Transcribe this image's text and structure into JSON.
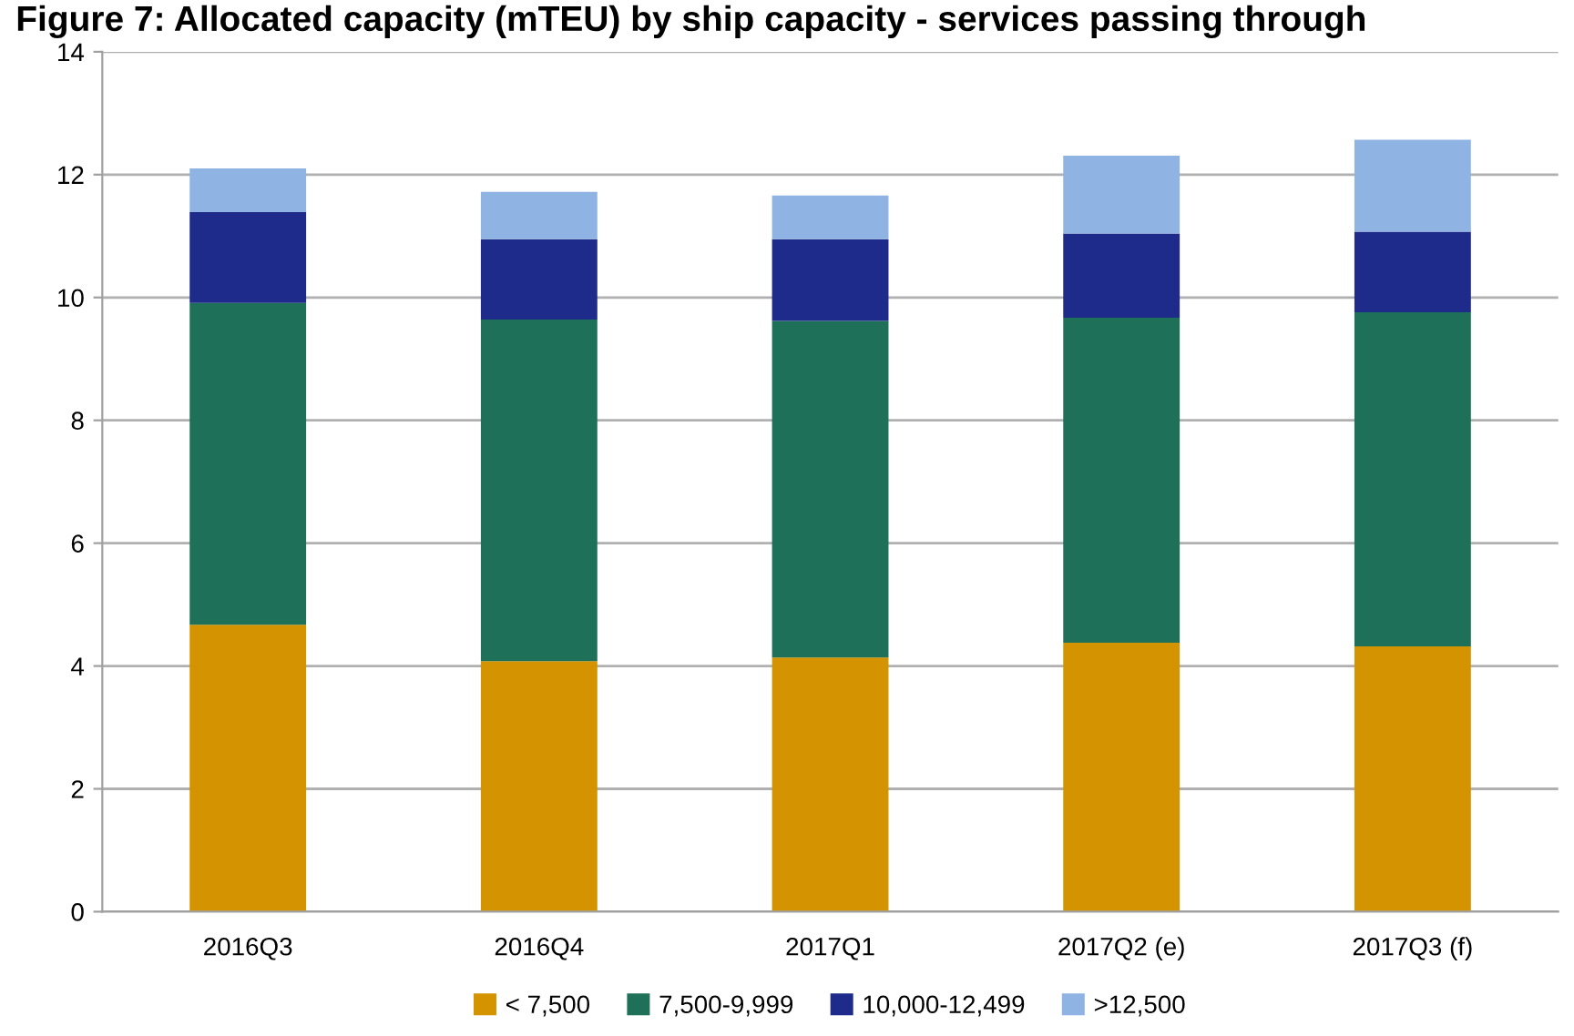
{
  "chart_data": {
    "type": "bar",
    "title": "Figure 7: Allocated capacity (mTEU) by ship capacity - services passing through",
    "categories": [
      "2016Q3",
      "2016Q4",
      "2017Q1",
      "2017Q2 (e)",
      "2017Q3 (f)"
    ],
    "stacked": true,
    "series": [
      {
        "name": "< 7,500",
        "color": "#d49300",
        "values": [
          4.67,
          4.08,
          4.14,
          4.38,
          4.32
        ]
      },
      {
        "name": "7,500-9,999",
        "color": "#1e7158",
        "values": [
          5.24,
          5.56,
          5.48,
          5.29,
          5.44
        ]
      },
      {
        "name": "10,000-12,499",
        "color": "#1e2b8a",
        "values": [
          1.48,
          1.31,
          1.33,
          1.37,
          1.31
        ]
      },
      {
        "name": ">12,500",
        "color": "#8fb4e3",
        "values": [
          0.71,
          0.77,
          0.71,
          1.27,
          1.5
        ]
      }
    ],
    "ylim": [
      0,
      14
    ],
    "yticks": [
      0,
      2,
      4,
      6,
      8,
      10,
      12,
      14
    ],
    "grid": "y",
    "legend": "bottom"
  }
}
